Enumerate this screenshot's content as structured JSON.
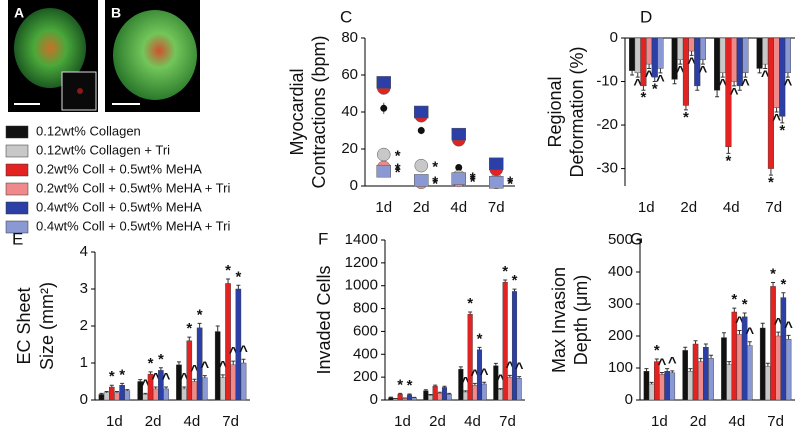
{
  "images": [
    {
      "label": "A"
    },
    {
      "label": "B"
    }
  ],
  "chart_data": [
    {
      "type": "dot",
      "label": "C",
      "ylabel": [
        "Myocardial",
        "Contractions (bpm)"
      ],
      "categories": [
        "1d",
        "2d",
        "4d",
        "7d"
      ],
      "ylim": [
        0,
        80
      ],
      "yticks": [
        0,
        20,
        40,
        60,
        80
      ],
      "series": [
        {
          "name": "0.12wt% Collagen",
          "color": "#111111",
          "marker": "dot",
          "values": [
            42,
            30,
            10,
            8
          ],
          "errors": [
            3,
            2,
            1,
            1
          ],
          "annotations": [
            null,
            null,
            null,
            null
          ]
        },
        {
          "name": "0.12wt% Collagen + Tri",
          "color": "#c8c8c8",
          "marker": "circle",
          "values": [
            17,
            11,
            5,
            3
          ],
          "errors": [
            2,
            1,
            1,
            1
          ],
          "annotations": [
            "*",
            "*",
            "*",
            "*"
          ]
        },
        {
          "name": "0.2wt% Coll + 0.5wt% MeHA",
          "color": "#e32222",
          "marker": "circle",
          "values": [
            53,
            38,
            25,
            9
          ],
          "errors": [
            3,
            3,
            2,
            1
          ],
          "annotations": [
            null,
            null,
            null,
            null
          ]
        },
        {
          "name": "0.2wt% Coll + 0.5wt% MeHA + Tri",
          "color": "#f08a8a",
          "marker": "circle",
          "values": [
            10,
            2,
            3,
            2
          ],
          "errors": [
            1,
            1,
            1,
            1
          ],
          "annotations": [
            "*",
            "*",
            "*",
            "*"
          ]
        },
        {
          "name": "0.4wt% Coll + 0.5wt% MeHA",
          "color": "#2b3fa6",
          "marker": "square",
          "values": [
            56,
            40,
            28,
            12
          ],
          "errors": [
            3,
            3,
            2,
            1
          ],
          "annotations": [
            null,
            null,
            null,
            null
          ]
        },
        {
          "name": "0.4wt% Coll + 0.5wt% MeHA + Tri",
          "color": "#8a98d4",
          "marker": "square",
          "values": [
            8,
            3,
            4,
            2
          ],
          "errors": [
            1,
            1,
            1,
            1
          ],
          "annotations": [
            "*",
            "*",
            "*",
            "*"
          ]
        }
      ]
    },
    {
      "type": "bar",
      "label": "D",
      "ylabel": [
        "Regional",
        "Deformation (%)"
      ],
      "categories": [
        "1d",
        "2d",
        "4d",
        "7d"
      ],
      "ylim": [
        -34,
        0
      ],
      "yticks": [
        0,
        -10,
        -20,
        -30
      ],
      "series": [
        {
          "color": "#111111",
          "values": [
            -7.5,
            -9.5,
            -12,
            -7
          ],
          "errors": [
            1,
            1,
            1.5,
            1
          ],
          "annotations": [
            null,
            null,
            null,
            null
          ]
        },
        {
          "color": "#c8c8c8",
          "values": [
            -8,
            -5,
            -8,
            -6
          ],
          "errors": [
            1,
            1,
            1,
            1
          ],
          "annotations": [
            "^",
            "^",
            "^",
            "^"
          ]
        },
        {
          "color": "#e32222",
          "values": [
            -11,
            -15.5,
            -25,
            -30
          ],
          "errors": [
            1,
            1,
            1.5,
            1.5
          ],
          "annotations": [
            "*",
            "*",
            "*",
            "*"
          ]
        },
        {
          "color": "#f08a8a",
          "values": [
            -6,
            -3,
            -10,
            -16
          ],
          "errors": [
            1,
            1,
            1,
            1
          ],
          "annotations": [
            "^",
            "^",
            "^",
            "^"
          ]
        },
        {
          "color": "#2b3fa6",
          "values": [
            -9,
            -11,
            -11,
            -18
          ],
          "errors": [
            1,
            1,
            1,
            1.5
          ],
          "annotations": [
            "*",
            null,
            null,
            "*"
          ]
        },
        {
          "color": "#8a98d4",
          "values": [
            -7,
            -5,
            -8,
            -8
          ],
          "errors": [
            1,
            1,
            1,
            1
          ],
          "annotations": [
            "^",
            "^",
            "^",
            "^"
          ]
        }
      ]
    },
    {
      "type": "bar",
      "label": "E",
      "ylabel": [
        "EC Sheet",
        "Size (mm²)"
      ],
      "categories": [
        "1d",
        "2d",
        "4d",
        "7d"
      ],
      "ylim": [
        0,
        4
      ],
      "yticks": [
        0,
        1,
        2,
        3,
        4
      ],
      "series": [
        {
          "color": "#111111",
          "values": [
            0.15,
            0.5,
            0.95,
            1.85
          ],
          "errors": [
            0.03,
            0.05,
            0.08,
            0.15
          ],
          "annotations": [
            null,
            null,
            null,
            null
          ]
        },
        {
          "color": "#c8c8c8",
          "values": [
            0.2,
            0.15,
            0.3,
            0.6
          ],
          "errors": [
            0.03,
            0.03,
            0.05,
            0.08
          ],
          "annotations": [
            null,
            "^",
            "^",
            "^"
          ]
        },
        {
          "color": "#e32222",
          "values": [
            0.35,
            0.7,
            1.6,
            3.15
          ],
          "errors": [
            0.05,
            0.06,
            0.1,
            0.12
          ],
          "annotations": [
            "*",
            "*",
            "*",
            "*"
          ]
        },
        {
          "color": "#f08a8a",
          "values": [
            0.2,
            0.3,
            0.5,
            0.95
          ],
          "errors": [
            0.03,
            0.05,
            0.06,
            0.1
          ],
          "annotations": [
            null,
            "^",
            "^",
            "^"
          ]
        },
        {
          "color": "#2b3fa6",
          "values": [
            0.4,
            0.8,
            1.95,
            3.0
          ],
          "errors": [
            0.05,
            0.07,
            0.12,
            0.1
          ],
          "annotations": [
            "*",
            "*",
            "*",
            "*"
          ]
        },
        {
          "color": "#8a98d4",
          "values": [
            0.25,
            0.3,
            0.6,
            1.0
          ],
          "errors": [
            0.03,
            0.05,
            0.06,
            0.1
          ],
          "annotations": [
            null,
            "^",
            "^",
            "^"
          ]
        }
      ]
    },
    {
      "type": "bar",
      "label": "F",
      "ylabel": [
        "Invaded Cells"
      ],
      "categories": [
        "1d",
        "2d",
        "4d",
        "7d"
      ],
      "ylim": [
        0,
        1400
      ],
      "yticks": [
        0,
        200,
        400,
        600,
        800,
        1000,
        1200,
        1400
      ],
      "series": [
        {
          "color": "#111111",
          "values": [
            20,
            80,
            270,
            300
          ],
          "errors": [
            5,
            10,
            20,
            20
          ],
          "annotations": [
            null,
            null,
            null,
            null
          ]
        },
        {
          "color": "#c8c8c8",
          "values": [
            10,
            40,
            70,
            90
          ],
          "errors": [
            3,
            8,
            10,
            10
          ],
          "annotations": [
            null,
            null,
            "^",
            "^"
          ]
        },
        {
          "color": "#e32222",
          "values": [
            50,
            120,
            750,
            1030
          ],
          "errors": [
            8,
            10,
            20,
            20
          ],
          "annotations": [
            "*",
            null,
            "*",
            "*"
          ]
        },
        {
          "color": "#f08a8a",
          "values": [
            15,
            60,
            130,
            200
          ],
          "errors": [
            3,
            8,
            15,
            15
          ],
          "annotations": [
            null,
            null,
            "^",
            "^"
          ]
        },
        {
          "color": "#2b3fa6",
          "values": [
            45,
            110,
            440,
            950
          ],
          "errors": [
            8,
            10,
            20,
            20
          ],
          "annotations": [
            "*",
            null,
            "*",
            "*"
          ]
        },
        {
          "color": "#8a98d4",
          "values": [
            20,
            50,
            140,
            190
          ],
          "errors": [
            3,
            8,
            15,
            15
          ],
          "annotations": [
            null,
            null,
            "^",
            "^"
          ]
        }
      ]
    },
    {
      "type": "bar",
      "label": "G",
      "ylabel": [
        "Max Invasion",
        "Depth (μm)"
      ],
      "categories": [
        "1d",
        "2d",
        "4d",
        "7d"
      ],
      "ylim": [
        0,
        500
      ],
      "yticks": [
        0,
        100,
        200,
        300,
        400,
        500
      ],
      "series": [
        {
          "color": "#111111",
          "values": [
            90,
            155,
            195,
            225
          ],
          "errors": [
            8,
            10,
            15,
            15
          ],
          "annotations": [
            null,
            null,
            null,
            null
          ]
        },
        {
          "color": "#c8c8c8",
          "values": [
            50,
            90,
            110,
            105
          ],
          "errors": [
            5,
            8,
            10,
            10
          ],
          "annotations": [
            null,
            null,
            null,
            null
          ]
        },
        {
          "color": "#e32222",
          "values": [
            120,
            175,
            275,
            355
          ],
          "errors": [
            8,
            10,
            12,
            12
          ],
          "annotations": [
            "*",
            null,
            "*",
            "*"
          ]
        },
        {
          "color": "#f08a8a",
          "values": [
            80,
            120,
            205,
            200
          ],
          "errors": [
            6,
            10,
            12,
            12
          ],
          "annotations": [
            "^",
            null,
            "^",
            "^"
          ]
        },
        {
          "color": "#2b3fa6",
          "values": [
            90,
            165,
            260,
            320
          ],
          "errors": [
            8,
            10,
            12,
            15
          ],
          "annotations": [
            null,
            null,
            "*",
            "*"
          ]
        },
        {
          "color": "#8a98d4",
          "values": [
            85,
            130,
            170,
            190
          ],
          "errors": [
            6,
            10,
            12,
            12
          ],
          "annotations": [
            "^",
            null,
            "^",
            "^"
          ]
        }
      ]
    }
  ]
}
